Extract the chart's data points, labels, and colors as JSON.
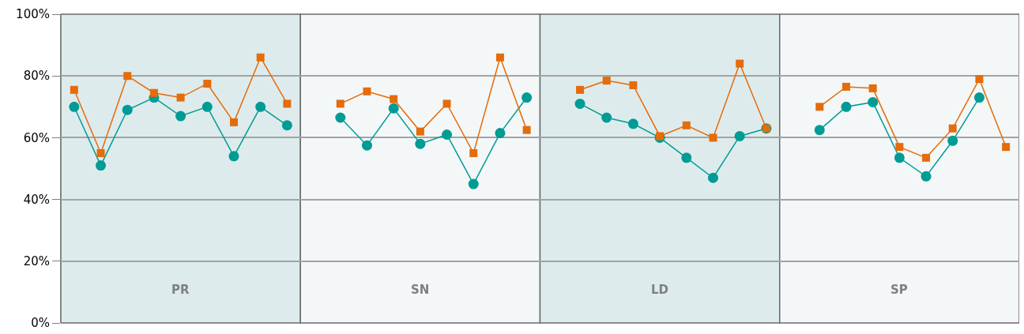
{
  "chart_data": {
    "type": "line",
    "categories": [
      null,
      null,
      null,
      null,
      "PR",
      null,
      null,
      null,
      null,
      null,
      null,
      null,
      null,
      "SN",
      null,
      null,
      null,
      null,
      null,
      null,
      null,
      null,
      "LD",
      null,
      null,
      null,
      null,
      null,
      null,
      null,
      null,
      "SP",
      null,
      null,
      null,
      null
    ],
    "series": [
      {
        "color": "#009b94",
        "marker": "circle",
        "values": [
          70,
          51,
          69,
          73,
          67,
          70,
          54,
          70,
          64,
          null,
          null,
          null,
          null,
          null,
          null,
          null,
          null,
          null,
          null,
          null,
          null,
          null,
          null,
          null,
          null,
          null,
          null,
          null,
          null,
          null,
          null,
          null,
          null,
          null,
          null,
          null
        ]
      },
      {
        "color": "#e46c0a",
        "marker": "square",
        "values": [
          75.5,
          55,
          80,
          74.5,
          73,
          77.5,
          65,
          86,
          71,
          null,
          null,
          null,
          null,
          null,
          null,
          null,
          null,
          null,
          null,
          null,
          null,
          null,
          null,
          null,
          null,
          null,
          null,
          null,
          null,
          null,
          null,
          null,
          null,
          null,
          null,
          null
        ]
      },
      {
        "color": "#009b94",
        "marker": "circle",
        "values": [
          null,
          null,
          null,
          null,
          null,
          null,
          null,
          null,
          null,
          null,
          66.5,
          57.5,
          69.5,
          58,
          61,
          45,
          61.5,
          73,
          null,
          null,
          null,
          null,
          null,
          null,
          null,
          null,
          null,
          null,
          null,
          null,
          null,
          null,
          null,
          null,
          null,
          null
        ]
      },
      {
        "color": "#e46c0a",
        "marker": "square",
        "values": [
          null,
          null,
          null,
          null,
          null,
          null,
          null,
          null,
          null,
          null,
          71,
          75,
          72.5,
          62,
          71,
          55,
          86,
          62.5,
          null,
          null,
          null,
          null,
          null,
          null,
          null,
          null,
          null,
          null,
          null,
          null,
          null,
          null,
          null,
          null,
          null,
          null
        ]
      },
      {
        "color": "#009b94",
        "marker": "circle",
        "values": [
          null,
          null,
          null,
          null,
          null,
          null,
          null,
          null,
          null,
          null,
          null,
          null,
          null,
          null,
          null,
          null,
          null,
          null,
          null,
          71,
          66.5,
          64.5,
          60,
          53.5,
          47,
          60.5,
          63,
          null,
          null,
          null,
          null,
          null,
          null,
          null,
          null,
          null
        ]
      },
      {
        "color": "#e46c0a",
        "marker": "square",
        "values": [
          null,
          null,
          null,
          null,
          null,
          null,
          null,
          null,
          null,
          null,
          null,
          null,
          null,
          null,
          null,
          null,
          null,
          null,
          null,
          75.5,
          78.5,
          77,
          60.5,
          64,
          60,
          84,
          63,
          null,
          null,
          null,
          null,
          null,
          null,
          null,
          null,
          null
        ]
      },
      {
        "color": "#009b94",
        "marker": "circle",
        "values": [
          null,
          null,
          null,
          null,
          null,
          null,
          null,
          null,
          null,
          null,
          null,
          null,
          null,
          null,
          null,
          null,
          null,
          null,
          null,
          null,
          null,
          null,
          null,
          null,
          null,
          null,
          null,
          null,
          62.5,
          70,
          71.5,
          53.5,
          47.5,
          59,
          73,
          null
        ]
      },
      {
        "color": "#e46c0a",
        "marker": "square",
        "values": [
          null,
          null,
          null,
          null,
          null,
          null,
          null,
          null,
          null,
          null,
          null,
          null,
          null,
          null,
          null,
          null,
          null,
          null,
          null,
          null,
          null,
          null,
          null,
          null,
          null,
          null,
          null,
          null,
          70,
          76.5,
          76,
          57,
          53.5,
          63,
          79,
          57
        ]
      }
    ],
    "ylim": [
      0,
      100
    ],
    "yticks": [
      {
        "value": 0,
        "label": "0%"
      },
      {
        "value": 20,
        "label": "20%"
      },
      {
        "value": 40,
        "label": "40%"
      },
      {
        "value": 60,
        "label": "60%"
      },
      {
        "value": 80,
        "label": "80%"
      },
      {
        "value": 100,
        "label": "100%"
      }
    ],
    "grid": "y",
    "line_style": "solid"
  }
}
